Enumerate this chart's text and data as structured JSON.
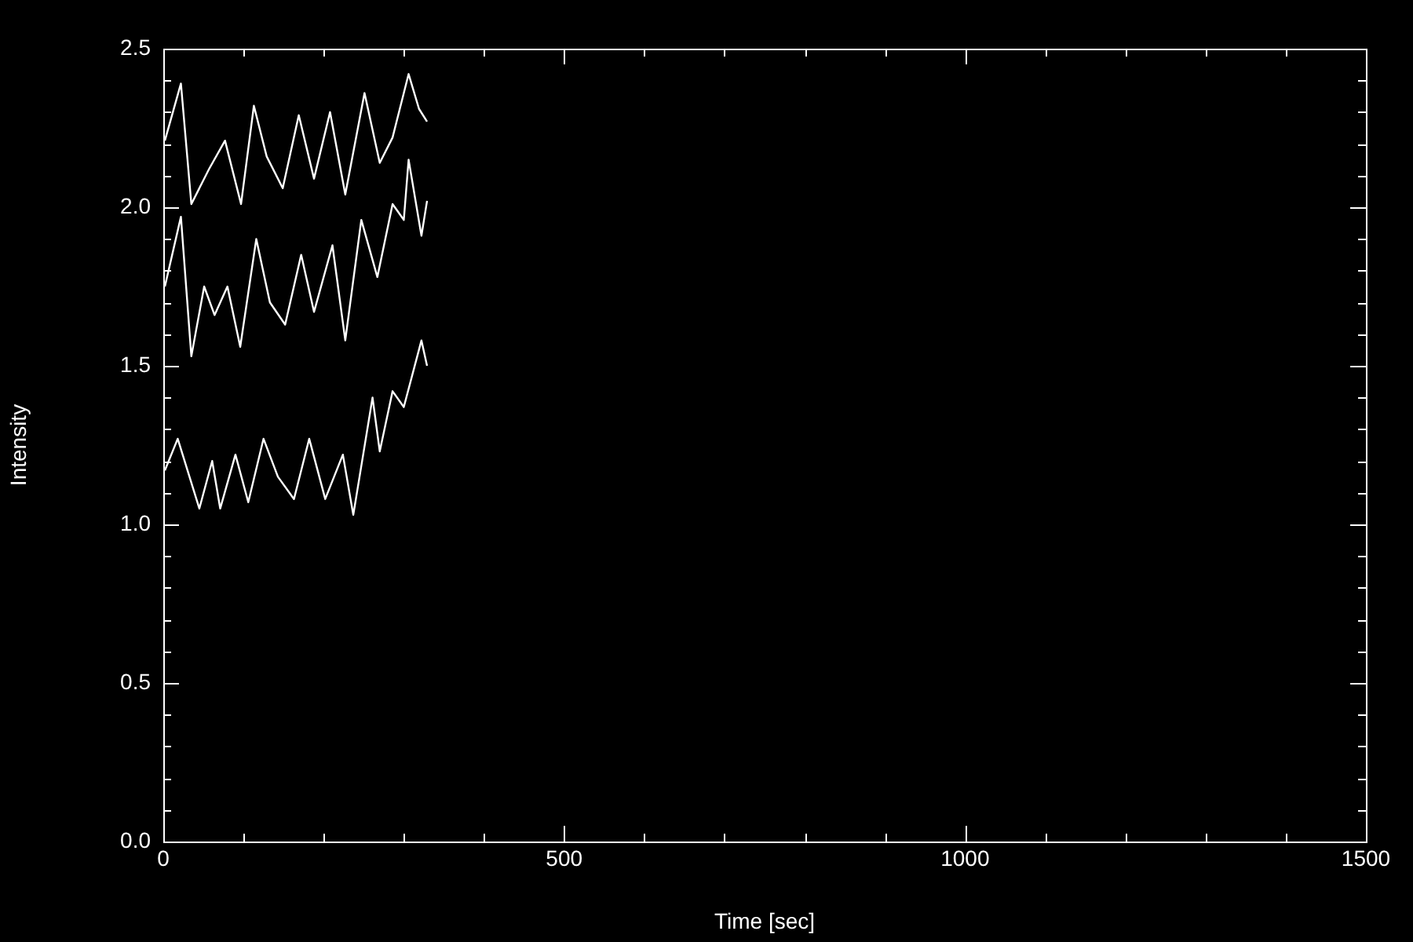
{
  "chart_data": {
    "type": "line",
    "xlabel": "Time [sec]",
    "ylabel": "Intensity",
    "xlim": [
      0,
      1500
    ],
    "ylim": [
      0,
      2.5
    ],
    "xticks": [
      0,
      {
        "value": 100,
        "label": null
      },
      {
        "value": 200,
        "label": null
      },
      {
        "value": 300,
        "label": null
      },
      {
        "value": 400,
        "label": null
      },
      500,
      {
        "value": 600,
        "label": null
      },
      {
        "value": 700,
        "label": null
      },
      {
        "value": 800,
        "label": null
      },
      {
        "value": 900,
        "label": null
      },
      1000,
      {
        "value": 1100,
        "label": null
      },
      {
        "value": 1200,
        "label": null
      },
      {
        "value": 1300,
        "label": null
      },
      {
        "value": 1400,
        "label": null
      },
      1500
    ],
    "yticks": [
      {
        "value": 0,
        "label": "0.0"
      },
      {
        "value": 0.1,
        "label": null
      },
      {
        "value": 0.2,
        "label": null
      },
      {
        "value": 0.3,
        "label": null
      },
      {
        "value": 0.4,
        "label": null
      },
      {
        "value": 0.5,
        "label": "0.5"
      },
      {
        "value": 0.6,
        "label": null
      },
      {
        "value": 0.7,
        "label": null
      },
      {
        "value": 0.8,
        "label": null
      },
      {
        "value": 0.9,
        "label": null
      },
      {
        "value": 1,
        "label": "1.0"
      },
      {
        "value": 1.1,
        "label": null
      },
      {
        "value": 1.2,
        "label": null
      },
      {
        "value": 1.3,
        "label": null
      },
      {
        "value": 1.4,
        "label": null
      },
      {
        "value": 1.5,
        "label": "1.5"
      },
      {
        "value": 1.6,
        "label": null
      },
      {
        "value": 1.7,
        "label": null
      },
      {
        "value": 1.8,
        "label": null
      },
      {
        "value": 1.9,
        "label": null
      },
      {
        "value": 2,
        "label": "2.0"
      },
      {
        "value": 2.1,
        "label": null
      },
      {
        "value": 2.2,
        "label": null
      },
      {
        "value": 2.3,
        "label": null
      },
      {
        "value": 2.4,
        "label": null
      },
      {
        "value": 2.5,
        "label": "2.5"
      }
    ],
    "legend": false,
    "grid": false,
    "marker": "none",
    "line_style": "solid",
    "series": [
      {
        "color": "#ffffff",
        "x": [
          2,
          22,
          35,
          57,
          77,
          97,
          113,
          129,
          149,
          169,
          188,
          208,
          227,
          251,
          270,
          286,
          306,
          319,
          329
        ],
        "values": [
          2.21,
          2.39,
          2.01,
          2.12,
          2.21,
          2.01,
          2.32,
          2.16,
          2.06,
          2.29,
          2.09,
          2.3,
          2.04,
          2.36,
          2.14,
          2.22,
          2.42,
          2.31,
          2.27
        ]
      },
      {
        "color": "#ffffff",
        "x": [
          2,
          22,
          35,
          51,
          64,
          80,
          96,
          116,
          133,
          152,
          172,
          188,
          211,
          227,
          247,
          267,
          286,
          300,
          306,
          322,
          329
        ],
        "values": [
          1.75,
          1.97,
          1.53,
          1.75,
          1.66,
          1.75,
          1.56,
          1.9,
          1.7,
          1.63,
          1.85,
          1.67,
          1.88,
          1.58,
          1.96,
          1.78,
          2.01,
          1.96,
          2.15,
          1.91,
          2.02
        ]
      },
      {
        "color": "#ffffff",
        "x": [
          2,
          18,
          45,
          61,
          71,
          90,
          106,
          125,
          143,
          163,
          182,
          202,
          224,
          237,
          261,
          270,
          286,
          300,
          322,
          329
        ],
        "values": [
          1.17,
          1.27,
          1.05,
          1.2,
          1.05,
          1.22,
          1.07,
          1.27,
          1.15,
          1.08,
          1.27,
          1.08,
          1.22,
          1.03,
          1.4,
          1.23,
          1.42,
          1.37,
          1.58,
          1.5
        ]
      }
    ]
  }
}
